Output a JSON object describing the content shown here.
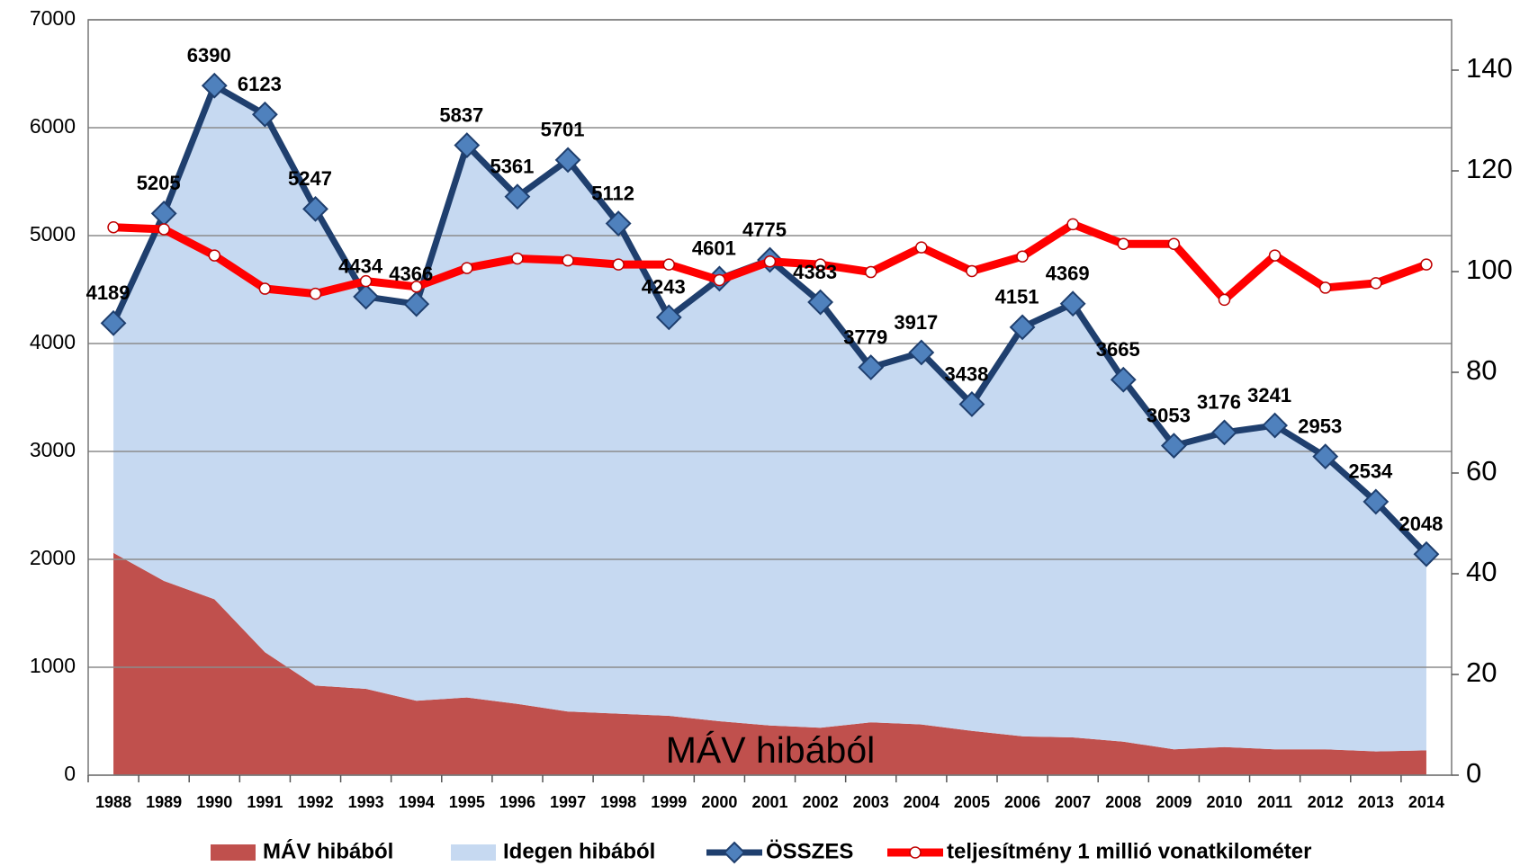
{
  "chart_data": {
    "type": "area",
    "categories": [
      "1988",
      "1989",
      "1990",
      "1991",
      "1992",
      "1993",
      "1994",
      "1995",
      "1996",
      "1997",
      "1998",
      "1999",
      "2000",
      "2001",
      "2002",
      "2003",
      "2004",
      "2005",
      "2006",
      "2007",
      "2008",
      "2009",
      "2010",
      "2011",
      "2012",
      "2013",
      "2014"
    ],
    "series": [
      {
        "name": "MÁV hibából",
        "type": "area",
        "color": "#c0504d",
        "values": [
          2060,
          1800,
          1630,
          1140,
          830,
          800,
          690,
          720,
          660,
          590,
          570,
          550,
          500,
          460,
          440,
          490,
          470,
          410,
          360,
          350,
          310,
          240,
          260,
          240,
          240,
          220,
          230
        ]
      },
      {
        "name": "Idegen hibából",
        "type": "area",
        "color": "#c6d9f1",
        "values": [
          2129,
          3405,
          4760,
          4983,
          4417,
          3634,
          3676,
          5117,
          4701,
          5111,
          4542,
          3693,
          4101,
          4315,
          3943,
          3289,
          3447,
          3028,
          3791,
          4019,
          3355,
          2813,
          2916,
          3001,
          2713,
          2314,
          1818
        ]
      },
      {
        "name": "ÖSSZES",
        "type": "line",
        "color": "#1f3f6e",
        "marker_color": "#4f81bd",
        "values": [
          4189,
          5205,
          6390,
          6123,
          5247,
          4434,
          4366,
          5837,
          5361,
          5701,
          5112,
          4243,
          4601,
          4775,
          4383,
          3779,
          3917,
          3438,
          4151,
          4369,
          3665,
          3053,
          3176,
          3241,
          2953,
          2534,
          2048
        ]
      },
      {
        "name": "teljesítmény 1 millió vonatkilométer",
        "type": "line",
        "color": "#ff0000",
        "marker_color": "#ffffff",
        "axis": "y2",
        "values": [
          108.8,
          108.4,
          103.2,
          96.6,
          95.6,
          98.1,
          97,
          100.7,
          102.6,
          102.2,
          101.4,
          101.4,
          98.3,
          102,
          101.4,
          99.9,
          104.8,
          100.1,
          103,
          109.4,
          105.5,
          105.5,
          94.4,
          103.2,
          96.8,
          97.7,
          101.4
        ]
      }
    ],
    "ylim": [
      0,
      7000
    ],
    "yticks": [
      0,
      1000,
      2000,
      3000,
      4000,
      5000,
      6000,
      7000
    ],
    "y2lim": [
      0,
      150
    ],
    "y2ticks": [
      0,
      20,
      40,
      60,
      80,
      100,
      120,
      140
    ],
    "grid": true,
    "legend": "bottom"
  }
}
